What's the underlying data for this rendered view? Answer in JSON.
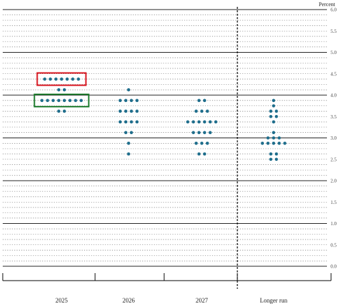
{
  "chart_data": {
    "type": "scatter",
    "ylabel": "Percent",
    "ylim": [
      0,
      6
    ],
    "y_ticks": [
      "0.0",
      "0.5",
      "1.0",
      "1.5",
      "2.0",
      "2.5",
      "3.0",
      "3.5",
      "4.0",
      "4.5",
      "5.0",
      "5.5",
      "6.0"
    ],
    "categories": [
      "2025",
      "2026",
      "2027",
      "Longer run"
    ],
    "separator_after_category": "2027",
    "grid": "solid at whole numbers, dotted at intermediate levels",
    "dot_color": "#1f6e8c",
    "series": [
      {
        "category": "2025",
        "points": [
          {
            "y": 4.375,
            "count": 7
          },
          {
            "y": 4.125,
            "count": 2
          },
          {
            "y": 3.875,
            "count": 8
          },
          {
            "y": 3.625,
            "count": 2
          }
        ]
      },
      {
        "category": "2026",
        "points": [
          {
            "y": 4.125,
            "count": 1
          },
          {
            "y": 3.875,
            "count": 4
          },
          {
            "y": 3.625,
            "count": 4
          },
          {
            "y": 3.375,
            "count": 4
          },
          {
            "y": 3.125,
            "count": 2
          },
          {
            "y": 2.875,
            "count": 1
          },
          {
            "y": 2.625,
            "count": 1
          }
        ]
      },
      {
        "category": "2027",
        "points": [
          {
            "y": 3.875,
            "count": 2
          },
          {
            "y": 3.625,
            "count": 3
          },
          {
            "y": 3.375,
            "count": 6
          },
          {
            "y": 3.125,
            "count": 4
          },
          {
            "y": 2.875,
            "count": 3
          },
          {
            "y": 2.625,
            "count": 2
          }
        ]
      },
      {
        "category": "Longer run",
        "points": [
          {
            "y": 3.875,
            "count": 1
          },
          {
            "y": 3.75,
            "count": 1
          },
          {
            "y": 3.625,
            "count": 2
          },
          {
            "y": 3.5,
            "count": 2
          },
          {
            "y": 3.375,
            "count": 1
          },
          {
            "y": 3.125,
            "count": 1
          },
          {
            "y": 3.0,
            "count": 3
          },
          {
            "y": 2.875,
            "count": 5
          },
          {
            "y": 2.625,
            "count": 2
          },
          {
            "y": 2.5,
            "count": 2
          }
        ]
      }
    ],
    "annotations": [
      {
        "category": "2025",
        "y": 4.375,
        "shape": "rectangle",
        "color": "#d9141e"
      },
      {
        "category": "2025",
        "y": 3.875,
        "shape": "rectangle",
        "color": "#1a7a2a"
      }
    ]
  }
}
